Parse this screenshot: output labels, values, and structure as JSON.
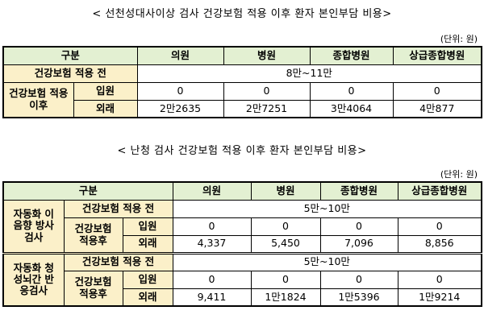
{
  "title1": "< 선천성대사이상 검사 건강보험 적용 이후 환자 본인부담 비용>",
  "unit1": "(단위: 원)",
  "table1": {
    "header": {
      "group": "구분",
      "cols": [
        "의원",
        "병원",
        "종합병원",
        "상급종합병원"
      ]
    },
    "before": {
      "label": "건강보험 적용 전",
      "value": "8만~11만"
    },
    "after": {
      "label": "건강보험 적용이후",
      "rows": [
        {
          "label": "입원",
          "values": [
            "0",
            "0",
            "0",
            "0"
          ]
        },
        {
          "label": "외래",
          "values": [
            "2만2635",
            "2만7251",
            "3만4064",
            "4만877"
          ]
        }
      ]
    }
  },
  "title2": "< 난청 검사 건강보험 적용 이후 환자 본인부담 비용>",
  "unit2": "(단위: 원)",
  "table2": {
    "header": {
      "group": "구분",
      "cols": [
        "의원",
        "병원",
        "종합병원",
        "상급종합병원"
      ]
    },
    "groups": [
      {
        "label": "자동화 이음향 방사검사",
        "before_label": "건강보험 적용 전",
        "before_value": "5만~10만",
        "after_label": "건강보험 적용후",
        "rows": [
          {
            "label": "입원",
            "values": [
              "0",
              "0",
              "0",
              "0"
            ]
          },
          {
            "label": "외래",
            "values": [
              "4,337",
              "5,450",
              "7,096",
              "8,856"
            ]
          }
        ]
      },
      {
        "label": "자동화 청성뇌간 반응검사",
        "before_label": "건강보험 적용 전",
        "before_value": "5만~10만",
        "after_label": "건강보험 적용후",
        "rows": [
          {
            "label": "입원",
            "values": [
              "0",
              "0",
              "0",
              "0"
            ]
          },
          {
            "label": "외래",
            "values": [
              "9,411",
              "1만1824",
              "1만5396",
              "1만9214"
            ]
          }
        ]
      }
    ]
  }
}
